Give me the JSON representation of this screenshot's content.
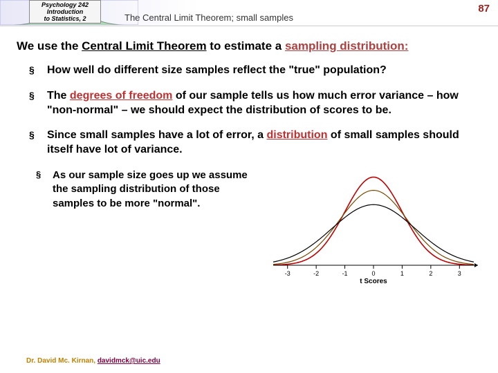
{
  "header": {
    "course_line1": "Psychology 242",
    "course_line2": "Introduction",
    "course_line3": "to Statistics, 2",
    "title": "The Central Limit Theorem; small samples",
    "page": "87"
  },
  "intro": {
    "pre": "We use the ",
    "clt": "Central Limit Theorem",
    "mid": " to estimate a ",
    "samp": "sampling distribution:"
  },
  "bullets": {
    "b1": "How well do different size samples reflect the \"true\" population?",
    "b2_pre": "The ",
    "b2_dof": "degrees of freedom",
    "b2_post": " of our sample tells us how much error variance – how \"non-normal\" – we should expect the distribution of scores to be.",
    "b3_pre": "Since small samples have a lot of error, a ",
    "b3_dist": "distribution",
    "b3_post": " of small samples should itself have lot of variance.",
    "b4": "As our sample size goes up we assume the sampling distribution of those samples to be more \"normal\"."
  },
  "chart": {
    "xlim": [
      -3.5,
      3.5
    ],
    "ylim": [
      0,
      0.42
    ],
    "ticks": [
      "-3",
      "-2",
      "-1",
      "0",
      "1",
      "2",
      "3"
    ],
    "xlabel": "t Scores",
    "curves": [
      {
        "color": "#c00000",
        "width": 1.6,
        "sigma": 1.0,
        "peak": 0.4
      },
      {
        "color": "#784800",
        "width": 1.2,
        "sigma": 1.18,
        "peak": 0.34
      },
      {
        "color": "#000000",
        "width": 1.2,
        "sigma": 1.45,
        "peak": 0.275
      }
    ],
    "axis_color": "#000000",
    "background": "#ffffff"
  },
  "footer": {
    "author": "Dr. David Mc. Kirnan, ",
    "email": "davidmck@uic.edu"
  }
}
